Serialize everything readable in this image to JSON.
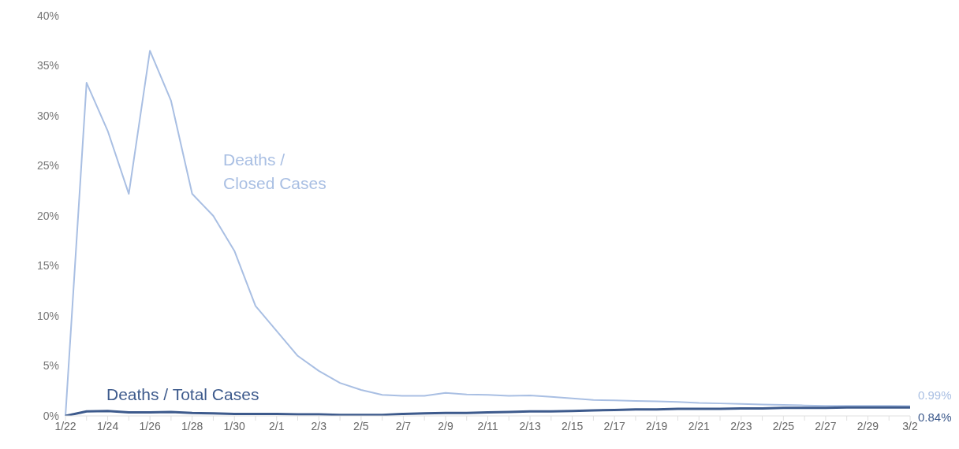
{
  "chart_data": {
    "type": "line",
    "categories": [
      "1/22",
      null,
      "1/24",
      null,
      "1/26",
      null,
      "1/28",
      null,
      "1/30",
      null,
      "2/1",
      null,
      "2/3",
      null,
      "2/5",
      null,
      "2/7",
      null,
      "2/9",
      null,
      "2/11",
      null,
      "2/13",
      null,
      "2/15",
      null,
      "2/17",
      null,
      "2/19",
      null,
      "2/21",
      null,
      "2/23",
      null,
      "2/25",
      null,
      "2/27",
      null,
      "2/29",
      null,
      "3/2"
    ],
    "series": [
      {
        "name": "Deaths / Closed Cases",
        "color": "#a9bfe3",
        "values": [
          0,
          33.3,
          28.5,
          22.2,
          36.5,
          31.5,
          22.2,
          20.0,
          16.5,
          11.0,
          8.5,
          6.0,
          4.5,
          3.3,
          2.6,
          2.1,
          2.0,
          2.0,
          2.3,
          2.15,
          2.1,
          2.0,
          2.05,
          1.9,
          1.75,
          1.6,
          1.55,
          1.5,
          1.45,
          1.4,
          1.3,
          1.25,
          1.2,
          1.15,
          1.1,
          1.05,
          1.0,
          1.0,
          1.0,
          1.0,
          0.99
        ],
        "value_labels": [
          null,
          null,
          null,
          null,
          null,
          null,
          null,
          null,
          null,
          null,
          null,
          null,
          null,
          null,
          null,
          null,
          null,
          null,
          null,
          null,
          null,
          null,
          null,
          null,
          null,
          null,
          null,
          null,
          null,
          null,
          null,
          null,
          null,
          null,
          null,
          null,
          null,
          null,
          null,
          null,
          "0.99%"
        ]
      },
      {
        "name": "Deaths / Total Cases",
        "color": "#3d5a8c",
        "values": [
          0,
          0.45,
          0.5,
          0.35,
          0.35,
          0.4,
          0.3,
          0.25,
          0.2,
          0.2,
          0.2,
          0.15,
          0.15,
          0.1,
          0.1,
          0.1,
          0.2,
          0.25,
          0.3,
          0.3,
          0.35,
          0.4,
          0.45,
          0.45,
          0.5,
          0.55,
          0.6,
          0.65,
          0.65,
          0.7,
          0.7,
          0.7,
          0.75,
          0.75,
          0.8,
          0.8,
          0.8,
          0.85,
          0.85,
          0.85,
          0.84
        ],
        "value_labels": [
          null,
          null,
          null,
          null,
          null,
          null,
          null,
          null,
          null,
          null,
          null,
          null,
          null,
          null,
          null,
          null,
          null,
          null,
          null,
          null,
          null,
          null,
          null,
          null,
          null,
          null,
          null,
          null,
          null,
          null,
          null,
          null,
          null,
          null,
          null,
          null,
          null,
          null,
          null,
          null,
          "0.84%"
        ]
      }
    ],
    "ylim": [
      0,
      40
    ],
    "yticks": [
      {
        "value": 0,
        "label": "0%"
      },
      {
        "value": 5,
        "label": "5%"
      },
      {
        "value": 10,
        "label": "10%"
      },
      {
        "value": 15,
        "label": "15%"
      },
      {
        "value": 20,
        "label": "20%"
      },
      {
        "value": 25,
        "label": "25%"
      },
      {
        "value": 30,
        "label": "30%"
      },
      {
        "value": 35,
        "label": "35%"
      },
      {
        "value": 40,
        "label": "40%"
      }
    ],
    "grid": false,
    "legend": false,
    "marker": "none",
    "line_style": "solid"
  }
}
